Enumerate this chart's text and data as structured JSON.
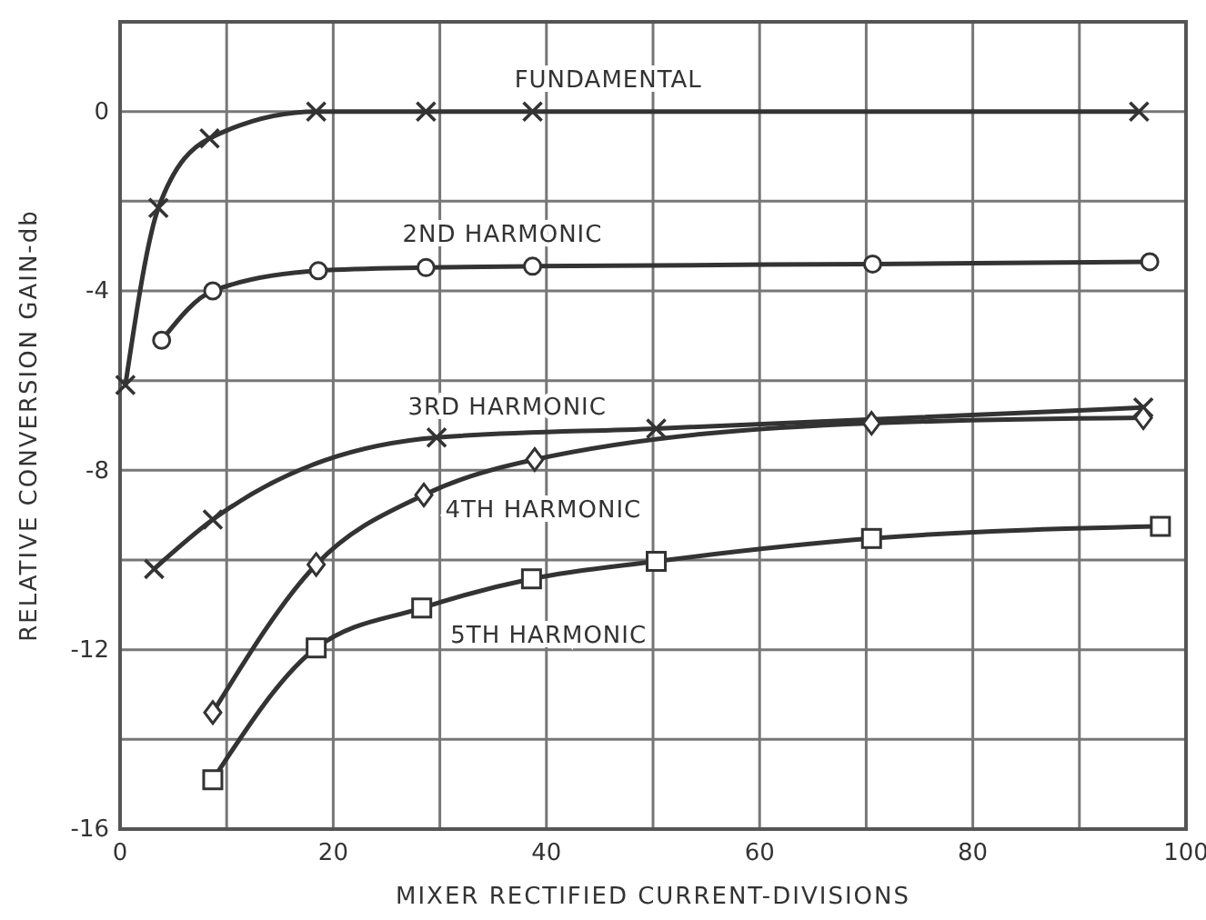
{
  "chart_data": {
    "type": "line",
    "xlabel": "MIXER RECTIFIED CURRENT-DIVISIONS",
    "ylabel": "RELATIVE CONVERSION GAIN-db",
    "xlim": [
      0,
      100
    ],
    "ylim": [
      -16,
      2
    ],
    "xticks": [
      0,
      {
        "value": 10,
        "label": null
      },
      20,
      {
        "value": 30,
        "label": null
      },
      40,
      {
        "value": 50,
        "label": null
      },
      60,
      {
        "value": 70,
        "label": null
      },
      80,
      {
        "value": 90,
        "label": null
      },
      100
    ],
    "yticks": [
      -16,
      {
        "value": -14,
        "label": null
      },
      -12,
      {
        "value": -10,
        "label": null
      },
      -8,
      {
        "value": -6,
        "label": null
      },
      -4,
      {
        "value": -2,
        "label": null
      },
      0,
      {
        "value": 2,
        "label": null
      }
    ],
    "grid": true,
    "line_style": "solid",
    "series": [
      {
        "name": "FUNDAMENTAL",
        "color": "#333333",
        "marker": "cross",
        "x": [
          0.5,
          3.6,
          8.4,
          18.4,
          28.7,
          38.7,
          95.6
        ],
        "values": [
          -6.1,
          -2.15,
          -0.6,
          0,
          0,
          0,
          0
        ]
      },
      {
        "name": "2ND HARMONIC",
        "color": "#333333",
        "marker": "circle",
        "x": [
          3.9,
          8.7,
          18.6,
          28.7,
          38.7,
          70.6,
          96.6
        ],
        "values": [
          -5.1,
          -4.0,
          -3.55,
          -3.48,
          -3.45,
          -3.4,
          -3.35
        ]
      },
      {
        "name": "3RD HARMONIC",
        "color": "#333333",
        "marker": "cross",
        "x": [
          3.2,
          8.7,
          29.7,
          50.3,
          96
        ],
        "values": [
          -10.2,
          -9.1,
          -7.27,
          -7.07,
          -6.6
        ]
      },
      {
        "name": "4TH HARMONIC",
        "color": "#333333",
        "marker": "diamond",
        "x": [
          8.7,
          18.4,
          28.5,
          38.9,
          70.5,
          96
        ],
        "values": [
          -13.4,
          -10.1,
          -8.55,
          -7.76,
          -6.95,
          -6.83
        ]
      },
      {
        "name": "5TH HARMONIC",
        "color": "#333333",
        "marker": "square",
        "x": [
          8.7,
          18.4,
          28.3,
          38.6,
          50.3,
          70.5,
          97.6
        ],
        "values": [
          -14.9,
          -11.96,
          -11.07,
          -10.42,
          -10.03,
          -9.52,
          -9.25
        ]
      }
    ]
  }
}
